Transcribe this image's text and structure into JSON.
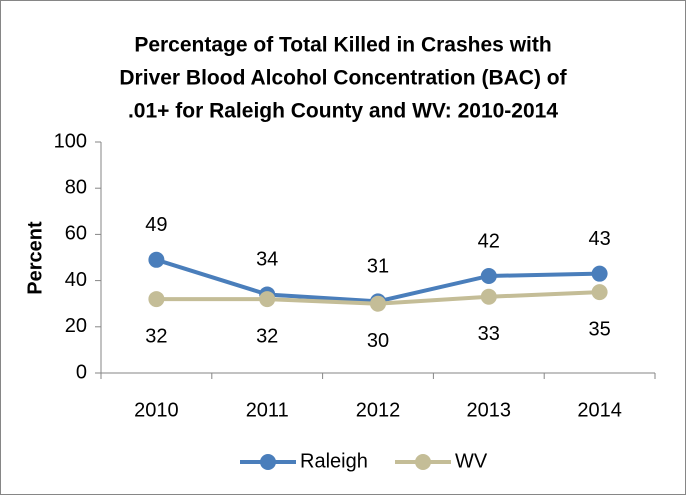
{
  "chart_data": {
    "type": "line",
    "title": [
      "Percentage of Total Killed in Crashes with",
      "Driver Blood Alcohol Concentration (BAC) of",
      ".01+ for Raleigh County and WV: 2010-2014"
    ],
    "y_label": "Percent",
    "categories": [
      "2010",
      "2011",
      "2012",
      "2013",
      "2014"
    ],
    "series": [
      {
        "name": "Raleigh",
        "color": "#4a7ebb",
        "values": [
          49,
          34,
          31,
          42,
          43
        ]
      },
      {
        "name": "WV",
        "color": "#c4bd97",
        "values": [
          32,
          32,
          30,
          33,
          35
        ]
      }
    ],
    "ylim": [
      0,
      100
    ],
    "yticks": [
      0,
      20,
      40,
      60,
      80,
      100
    ],
    "grid": false,
    "legend": "bottom"
  }
}
